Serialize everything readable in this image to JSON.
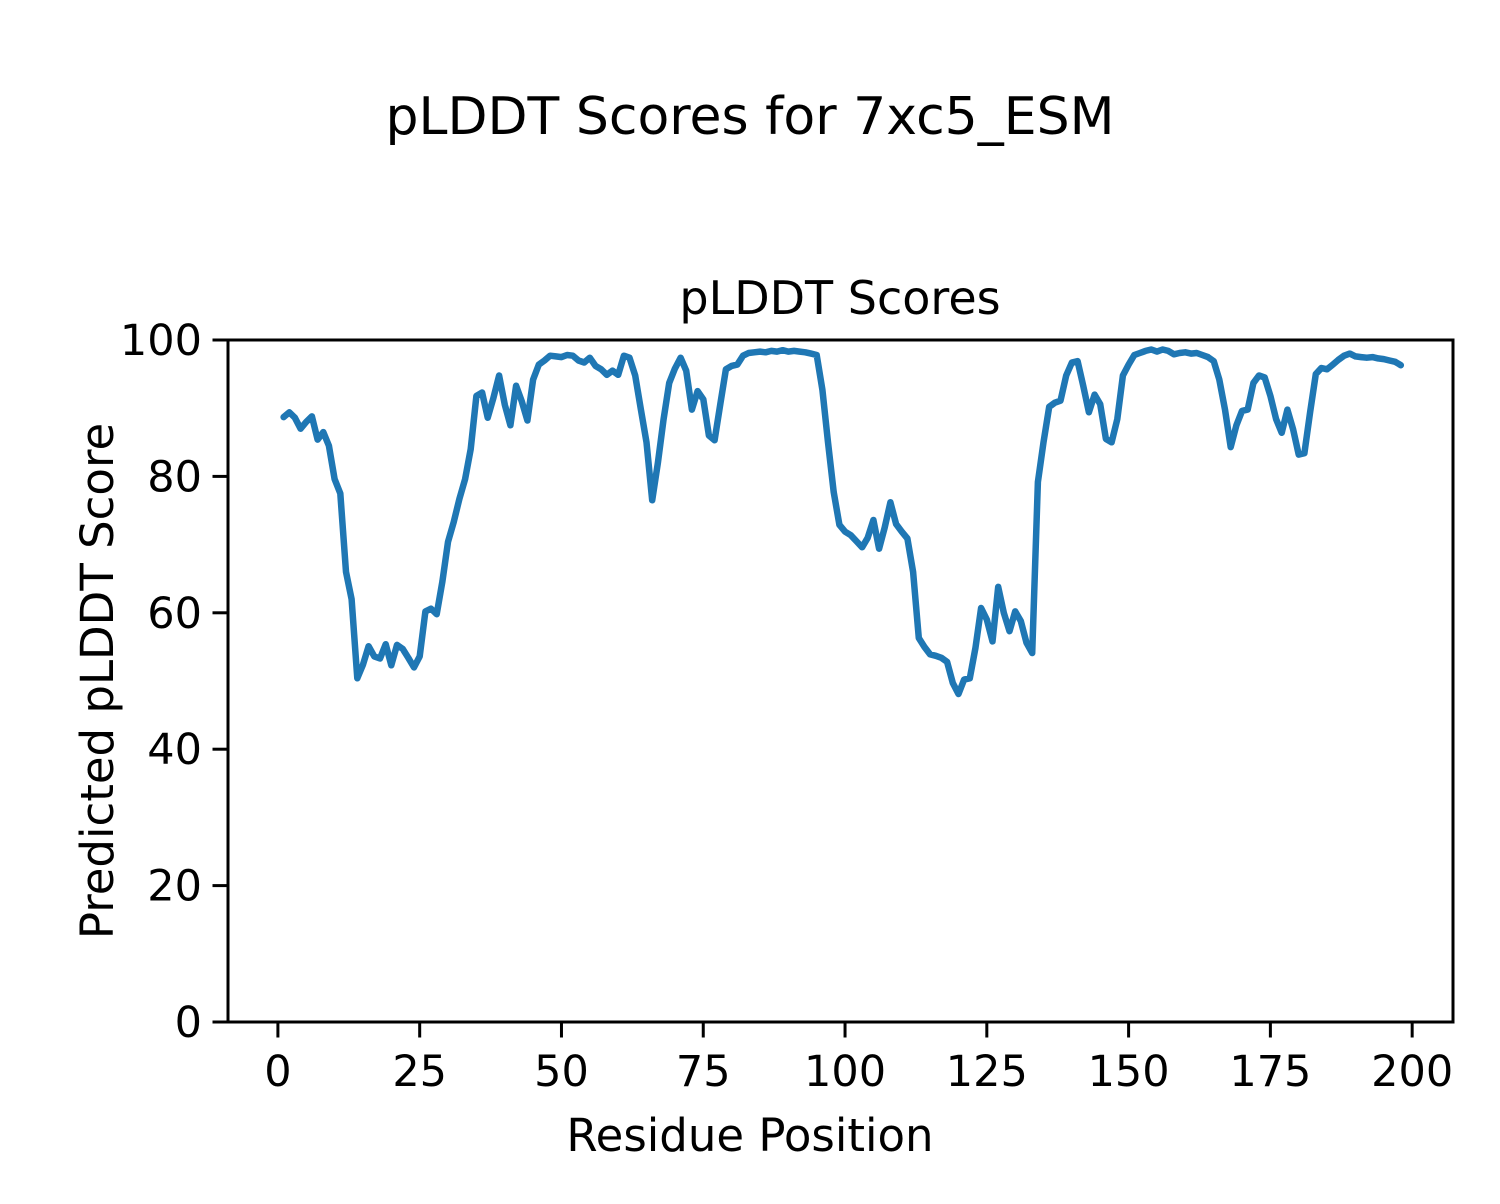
{
  "figure": {
    "suptitle": "pLDDT Scores for 7xc5_ESM",
    "background": "#ffffff"
  },
  "chart_data": {
    "type": "line",
    "title": "pLDDT Scores",
    "xlabel": "Residue Position",
    "ylabel": "Predicted pLDDT Score",
    "legend": "none",
    "grid": false,
    "x_axis": {
      "ticks": [
        0,
        25,
        50,
        75,
        100,
        125,
        150,
        175,
        200
      ],
      "range": [
        -8.8,
        207.2
      ]
    },
    "y_axis": {
      "ticks": [
        0,
        20,
        40,
        60,
        80,
        100
      ],
      "range": [
        0,
        100
      ]
    },
    "line_color": "#1f77b4",
    "axis_color": "#000000",
    "series": [
      {
        "name": "pLDDT",
        "x_start": 1,
        "x_step": 1,
        "values": [
          88.7,
          89.4,
          88.6,
          87.0,
          88.0,
          88.8,
          85.4,
          86.5,
          84.5,
          79.6,
          77.5,
          66.0,
          62.0,
          50.4,
          52.4,
          55.1,
          53.6,
          53.3,
          55.4,
          52.3,
          55.3,
          54.7,
          53.4,
          52.0,
          53.6,
          60.2,
          60.6,
          59.8,
          64.6,
          70.4,
          73.3,
          76.7,
          79.6,
          84.0,
          91.8,
          92.3,
          88.6,
          91.5,
          94.8,
          90.5,
          87.5,
          93.3,
          91.0,
          88.2,
          94.2,
          96.4,
          97.0,
          97.7,
          97.6,
          97.5,
          97.8,
          97.7,
          97.0,
          96.7,
          97.4,
          96.2,
          95.7,
          94.9,
          95.5,
          94.9,
          97.7,
          97.4,
          94.8,
          89.8,
          85.0,
          76.5,
          82.0,
          88.4,
          93.7,
          95.8,
          97.4,
          95.5,
          89.8,
          92.5,
          91.3,
          86.0,
          85.3,
          90.6,
          95.7,
          96.2,
          96.4,
          97.7,
          98.1,
          98.2,
          98.3,
          98.2,
          98.4,
          98.3,
          98.5,
          98.3,
          98.4,
          98.3,
          98.2,
          98.0,
          97.8,
          92.7,
          85.0,
          77.7,
          72.9,
          71.9,
          71.4,
          70.5,
          69.6,
          71.0,
          73.6,
          69.4,
          72.5,
          76.2,
          73.0,
          71.9,
          70.9,
          66.0,
          56.3,
          55.0,
          53.9,
          53.7,
          53.4,
          52.8,
          49.7,
          48.1,
          50.2,
          50.4,
          54.9,
          60.7,
          59.0,
          55.8,
          63.8,
          60.0,
          57.3,
          60.2,
          58.8,
          55.6,
          54.1,
          79.2,
          85.0,
          90.2,
          90.8,
          91.1,
          94.8,
          96.7,
          96.9,
          93.3,
          89.4,
          92.0,
          90.6,
          85.5,
          85.0,
          88.4,
          94.8,
          96.4,
          97.8,
          98.1,
          98.4,
          98.6,
          98.3,
          98.6,
          98.4,
          97.9,
          98.1,
          98.2,
          98.0,
          98.1,
          97.8,
          97.5,
          96.9,
          94.2,
          89.8,
          84.3,
          87.5,
          89.6,
          89.8,
          93.7,
          94.8,
          94.5,
          91.8,
          88.4,
          86.4,
          89.8,
          86.9,
          83.2,
          83.4,
          89.4,
          95.0,
          95.9,
          95.7,
          96.4,
          97.1,
          97.7,
          98.0,
          97.6,
          97.5,
          97.4,
          97.5,
          97.3,
          97.2,
          97.0,
          96.8,
          96.3
        ]
      }
    ]
  }
}
